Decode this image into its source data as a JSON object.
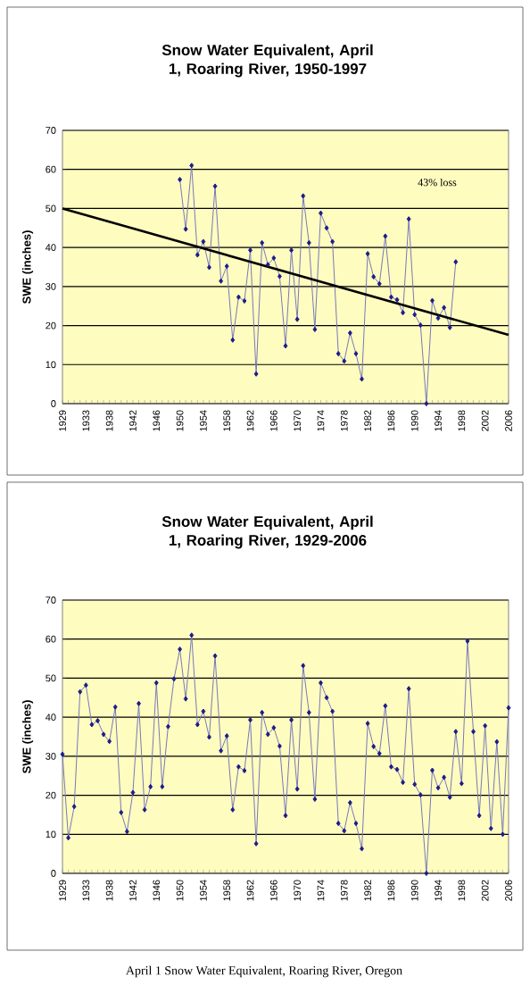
{
  "chart_data": [
    {
      "type": "line",
      "title": "Snow Water Equivalent, April 1, Roaring River, 1950-1997",
      "ylabel": "SWE (inches)",
      "categories": [
        "1929",
        null,
        null,
        null,
        "1933",
        null,
        null,
        null,
        "1938",
        null,
        null,
        null,
        "1942",
        null,
        null,
        null,
        "1946",
        null,
        null,
        null,
        "1950",
        null,
        null,
        null,
        "1954",
        null,
        null,
        null,
        "1958",
        null,
        null,
        null,
        "1962",
        null,
        null,
        null,
        "1966",
        null,
        null,
        null,
        "1970",
        null,
        null,
        null,
        "1974",
        null,
        null,
        null,
        "1978",
        null,
        null,
        null,
        "1982",
        null,
        null,
        null,
        "1986",
        null,
        null,
        null,
        "1990",
        null,
        null,
        null,
        "1994",
        null,
        null,
        null,
        "1998",
        null,
        null,
        null,
        "2002",
        null,
        null,
        null,
        "2006"
      ],
      "series": [
        {
          "color": "#1c1c8c",
          "marker": "diamond",
          "values": [
            null,
            null,
            null,
            null,
            null,
            null,
            null,
            null,
            null,
            null,
            null,
            null,
            null,
            null,
            null,
            null,
            null,
            null,
            null,
            null,
            57.4,
            44.7,
            61.0,
            38.1,
            41.5,
            34.9,
            55.7,
            31.4,
            35.2,
            16.3,
            27.3,
            26.3,
            39.3,
            7.6,
            41.2,
            35.6,
            37.3,
            32.6,
            14.8,
            39.3,
            21.6,
            53.2,
            41.2,
            19.0,
            48.8,
            45.0,
            41.5,
            12.8,
            10.9,
            18.1,
            12.8,
            6.3,
            38.4,
            32.5,
            30.7,
            42.9,
            27.3,
            26.6,
            23.3,
            47.3,
            22.8,
            20.1,
            0.0,
            26.4,
            21.9,
            24.6,
            19.5,
            36.3,
            null,
            null,
            null,
            null,
            null,
            null,
            null,
            null,
            null
          ]
        },
        {
          "type": "line",
          "color": "#000000",
          "marker": "none",
          "values": [
            50,
            null,
            null,
            null,
            null,
            null,
            null,
            null,
            null,
            null,
            null,
            null,
            null,
            null,
            null,
            null,
            null,
            null,
            null,
            null,
            null,
            null,
            null,
            null,
            null,
            null,
            null,
            null,
            null,
            null,
            null,
            null,
            null,
            null,
            null,
            null,
            null,
            null,
            null,
            null,
            null,
            null,
            null,
            null,
            null,
            null,
            null,
            null,
            null,
            null,
            null,
            null,
            null,
            null,
            null,
            null,
            null,
            null,
            null,
            null,
            null,
            null,
            null,
            null,
            null,
            null,
            null,
            null,
            null,
            null,
            null,
            null,
            null,
            null,
            null,
            null,
            17.6
          ]
        }
      ],
      "ylim": [
        0,
        70
      ],
      "yticks": [
        0,
        10,
        20,
        30,
        40,
        50,
        60,
        70
      ],
      "grid": "y",
      "annotations": [
        "43% loss"
      ]
    },
    {
      "type": "line",
      "title": "Snow Water Equivalent, April 1, Roaring River, 1929-2006",
      "ylabel": "SWE (inches)",
      "categories": [
        "1929",
        null,
        null,
        null,
        "1933",
        null,
        null,
        null,
        "1938",
        null,
        null,
        null,
        "1942",
        null,
        null,
        null,
        "1946",
        null,
        null,
        null,
        "1950",
        null,
        null,
        null,
        "1954",
        null,
        null,
        null,
        "1958",
        null,
        null,
        null,
        "1962",
        null,
        null,
        null,
        "1966",
        null,
        null,
        null,
        "1970",
        null,
        null,
        null,
        "1974",
        null,
        null,
        null,
        "1978",
        null,
        null,
        null,
        "1982",
        null,
        null,
        null,
        "1986",
        null,
        null,
        null,
        "1990",
        null,
        null,
        null,
        "1994",
        null,
        null,
        null,
        "1998",
        null,
        null,
        null,
        "2002",
        null,
        null,
        null,
        "2006"
      ],
      "series": [
        {
          "color": "#1c1c8c",
          "marker": "diamond",
          "values": [
            30.5,
            9.1,
            17.1,
            46.5,
            48.2,
            38.1,
            39.1,
            35.6,
            33.8,
            42.6,
            15.6,
            10.7,
            20.7,
            43.5,
            16.3,
            22.2,
            48.8,
            22.2,
            37.6,
            49.8,
            57.4,
            44.7,
            61.0,
            38.1,
            41.5,
            34.9,
            55.7,
            31.4,
            35.2,
            16.3,
            27.3,
            26.3,
            39.3,
            7.6,
            41.2,
            35.6,
            37.3,
            32.6,
            14.8,
            39.3,
            21.6,
            53.2,
            41.2,
            19.0,
            48.8,
            45.0,
            41.5,
            12.8,
            10.9,
            18.1,
            12.8,
            6.3,
            38.4,
            32.5,
            30.7,
            42.9,
            27.3,
            26.6,
            23.3,
            47.3,
            22.8,
            20.1,
            0.0,
            26.4,
            21.9,
            24.6,
            19.5,
            36.3,
            23.0,
            59.5,
            36.3,
            14.8,
            37.8,
            11.5,
            33.7,
            10.0,
            42.4
          ]
        }
      ],
      "ylim": [
        0,
        70
      ],
      "yticks": [
        0,
        10,
        20,
        30,
        40,
        50,
        60,
        70
      ],
      "grid": "y",
      "annotations": [
        "April 1 Snow Water Equivalent, Roaring River, Oregon"
      ]
    }
  ]
}
